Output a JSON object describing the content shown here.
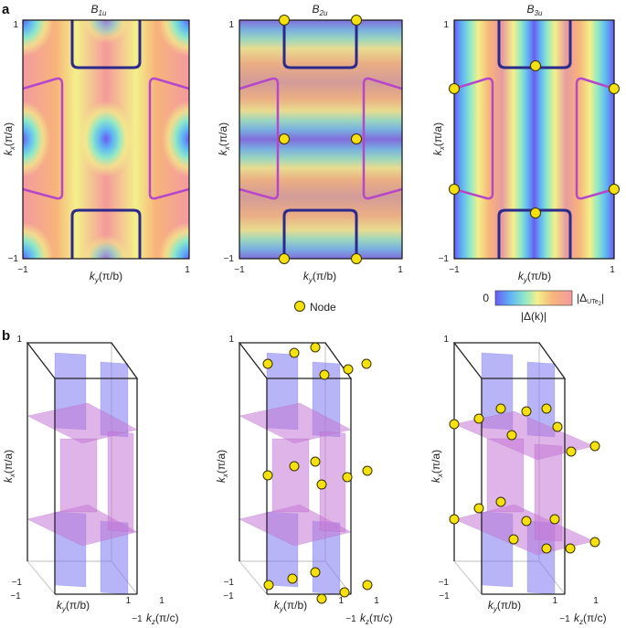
{
  "panel_labels": {
    "a": "a",
    "b": "b"
  },
  "panels_a": [
    {
      "title_main": "B",
      "title_sub": "1u"
    },
    {
      "title_main": "B",
      "title_sub": "2u"
    },
    {
      "title_main": "B",
      "title_sub": "3u"
    }
  ],
  "axes_a": {
    "x_tick_min": "−1",
    "x_tick_max": "1",
    "y_tick_min": "−1",
    "y_tick_max": "1",
    "xlabel_var": "k",
    "xlabel_sub": "y",
    "xlabel_unit": "(π/b)",
    "ylabel_var": "k",
    "ylabel_sub": "x",
    "ylabel_unit": "(π/a)"
  },
  "legend": {
    "node_label": "Node",
    "colorbar_min": "0",
    "colorbar_max_main": "|Δ",
    "colorbar_max_sub": "UTe",
    "colorbar_max_sub2": "2",
    "colorbar_max_end": "|",
    "colorbar_caption": "|Δ(k)|"
  },
  "axes_b": {
    "x_tick_min": "−1",
    "x_tick_max": "1",
    "z_tick_min": "−1",
    "z_tick_max": "1",
    "y_tick_min": "−1",
    "y_tick_max": "1",
    "ky_label_var": "k",
    "ky_label_sub": "y",
    "ky_label_unit": "(π/b)",
    "kz_label_var": "k",
    "kz_label_sub": "z",
    "kz_label_unit": "(π/c)",
    "kx_label_var": "k",
    "kx_label_sub": "x",
    "kx_label_unit": "(π/a)"
  },
  "colors": {
    "fermi_surface_dark": "#2b2a8c",
    "fermi_surface_light": "#b548c9",
    "node_fill": "#f4e10e",
    "sheet_blue": "#7b78f0",
    "sheet_purple": "#c476d6"
  }
}
